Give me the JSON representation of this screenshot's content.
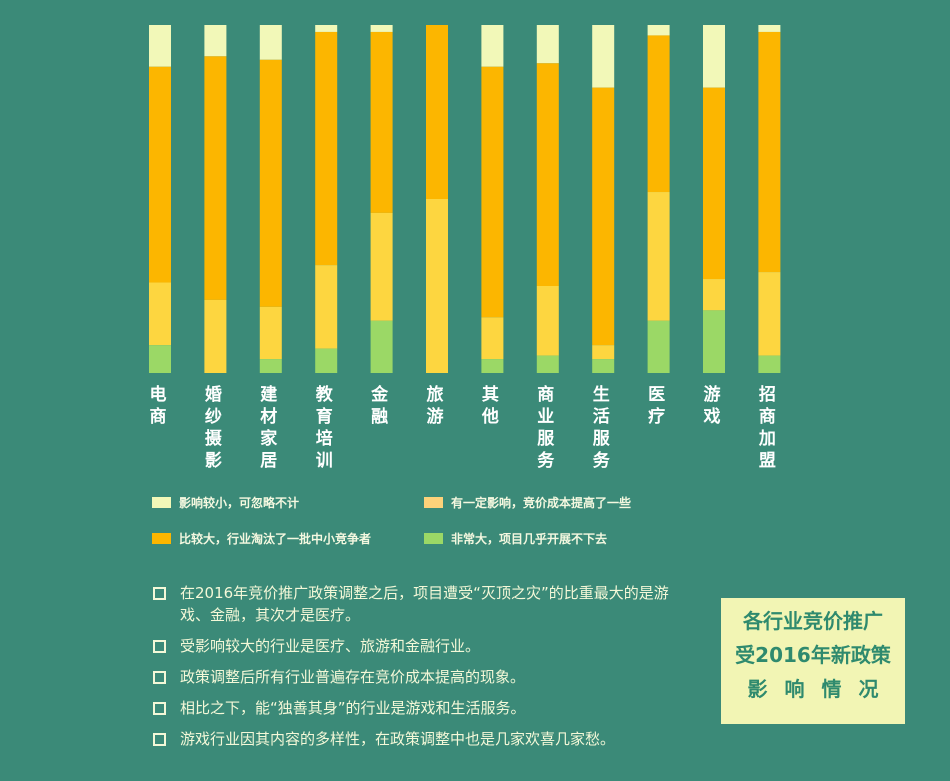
{
  "colors": {
    "background": "#3b8a78",
    "small": "#f2f8b8",
    "large": "#fcb600",
    "some": "#fdd640",
    "severe": "#9bd866"
  },
  "chart_data": {
    "type": "bar",
    "stacked": true,
    "percent": true,
    "categories": [
      "电商",
      "婚纱摄影",
      "建材家居",
      "教育培训",
      "金融",
      "旅游",
      "其他",
      "商业服务",
      "生活服务",
      "医疗",
      "游戏",
      "招商加盟"
    ],
    "series": [
      {
        "name": "影响较小，可忽略不计",
        "key": "small",
        "values": [
          12,
          9,
          10,
          2,
          2,
          0,
          12,
          11,
          18,
          3,
          18,
          2
        ]
      },
      {
        "name": "比较大，行业淘汰了一批中小竞争者",
        "key": "large",
        "values": [
          62,
          70,
          71,
          67,
          52,
          50,
          72,
          64,
          74,
          45,
          55,
          69
        ]
      },
      {
        "name": "有一定影响，竞价成本提高了一些",
        "key": "some",
        "values": [
          18,
          21,
          15,
          24,
          31,
          50,
          12,
          20,
          4,
          37,
          9,
          24
        ]
      },
      {
        "name": "非常大，项目几乎开展不下去",
        "key": "severe",
        "values": [
          8,
          0,
          4,
          7,
          15,
          0,
          4,
          5,
          4,
          15,
          18,
          5
        ]
      }
    ],
    "ylim": [
      0,
      100
    ],
    "legend_position": "bottom"
  },
  "legend": [
    {
      "label": "影响较小，可忽略不计",
      "key": "small"
    },
    {
      "label": "有一定影响，竞价成本提高了一些",
      "key": "some"
    },
    {
      "label": "比较大，行业淘汰了一批中小竞争者",
      "key": "large"
    },
    {
      "label": "非常大，项目几乎开展不下去",
      "key": "severe"
    }
  ],
  "notes": [
    "在2016年竞价推广政策调整之后，项目遭受“灭顶之灾”的比重最大的是游戏、金融，其次才是医疗。",
    "受影响较大的行业是医疗、旅游和金融行业。",
    "政策调整后所有行业普遍存在竞价成本提高的现象。",
    "相比之下，能“独善其身”的行业是游戏和生活服务。",
    "游戏行业因其内容的多样性，在政策调整中也是几家欢喜几家愁。"
  ],
  "title": {
    "line1": "各行业竞价推广",
    "line2": "受2016年新政策",
    "line3": "影响情况"
  }
}
